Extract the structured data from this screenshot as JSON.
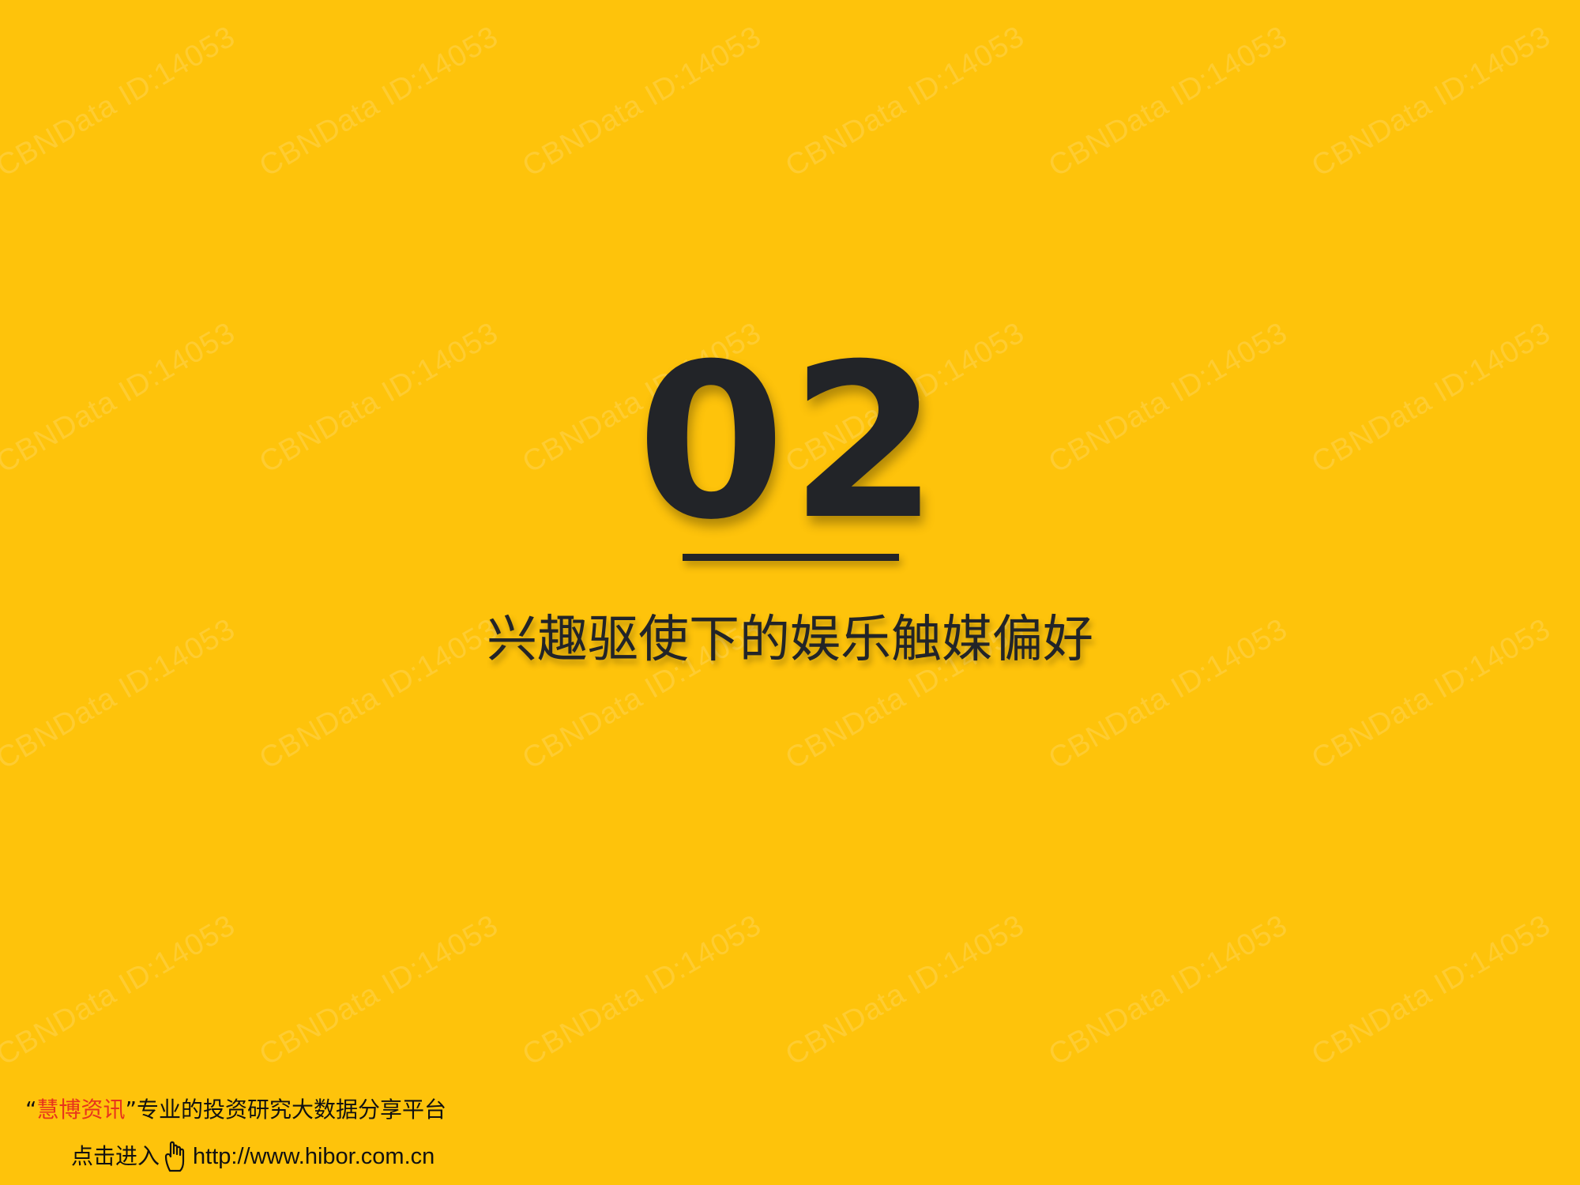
{
  "slide": {
    "background_color": "#FEC30B",
    "text_color": "#222428",
    "section_number": "02",
    "section_title": "兴趣驱使下的娱乐触媒偏好"
  },
  "watermark": {
    "text": "CBNData ID:14053"
  },
  "footer": {
    "quote_open": "“",
    "brand": "慧博资讯",
    "quote_close": "”",
    "tagline": "专业的投资研究大数据分享平台",
    "cta": "点击进入",
    "url": "http://www.hibor.com.cn",
    "brand_color": "#E8331C",
    "icon": "pointing-hand-icon"
  }
}
